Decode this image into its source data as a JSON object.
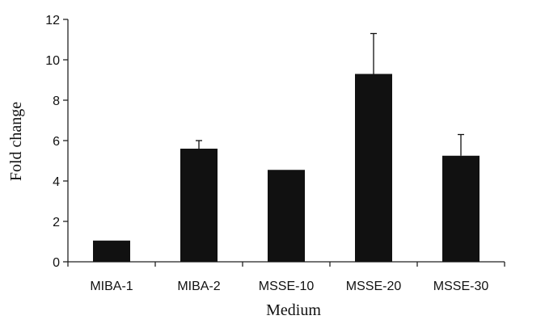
{
  "chart_data": {
    "type": "bar",
    "title": "",
    "xlabel": "Medium",
    "ylabel": "Fold change",
    "categories": [
      "MIBA-1",
      "MIBA-2",
      "MSSE-10",
      "MSSE-20",
      "MSSE-30"
    ],
    "values": [
      1.05,
      5.6,
      4.55,
      9.3,
      5.25
    ],
    "error_upper": [
      null,
      6.0,
      null,
      11.3,
      6.3
    ],
    "yticks": [
      0,
      2,
      4,
      6,
      8,
      10,
      12
    ],
    "ylim": [
      0,
      12
    ],
    "grid": false,
    "legend": "none",
    "bar_color": "#111111",
    "axis_color": "#222222"
  }
}
